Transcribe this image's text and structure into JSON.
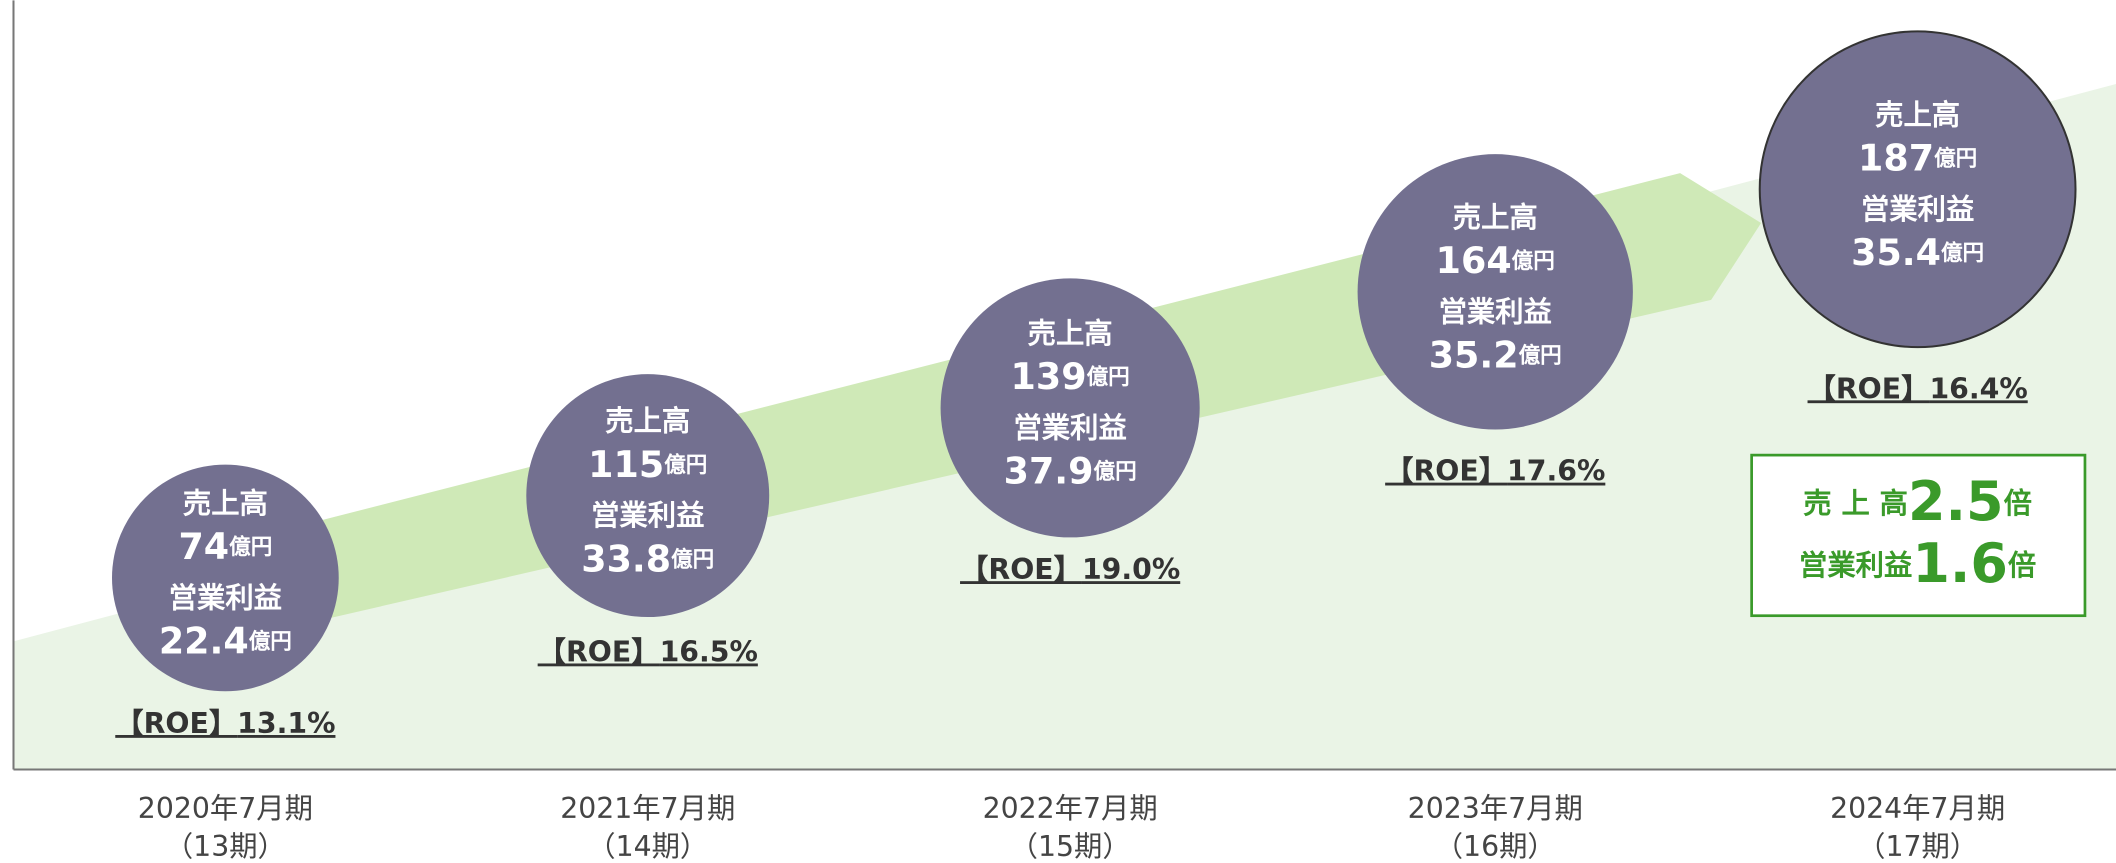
{
  "labels": {
    "revenue": "売上高",
    "profit": "営業利益",
    "unit": "億円"
  },
  "periods": [
    {
      "period": "2020年7月期",
      "term": "（13期）",
      "revenue": "74",
      "profit": "22.4",
      "roe_label": "【ROE】",
      "roe": "13.1%"
    },
    {
      "period": "2021年7月期",
      "term": "（14期）",
      "revenue": "115",
      "profit": "33.8",
      "roe_label": "【ROE】",
      "roe": "16.5%"
    },
    {
      "period": "2022年7月期",
      "term": "（15期）",
      "revenue": "139",
      "profit": "37.9",
      "roe_label": "【ROE】",
      "roe": "19.0%"
    },
    {
      "period": "2023年7月期",
      "term": "（16期）",
      "revenue": "164",
      "profit": "35.2",
      "roe_label": "【ROE】",
      "roe": "17.6%"
    },
    {
      "period": "2024年7月期",
      "term": "（17期）",
      "revenue": "187",
      "profit": "35.4",
      "roe_label": "【ROE】",
      "roe": "16.4%"
    }
  ],
  "summary": {
    "revenue_label": "売 上 高",
    "revenue_value": "2.5",
    "profit_label": "営業利益",
    "profit_value": "1.6",
    "multiplier": "倍"
  }
}
